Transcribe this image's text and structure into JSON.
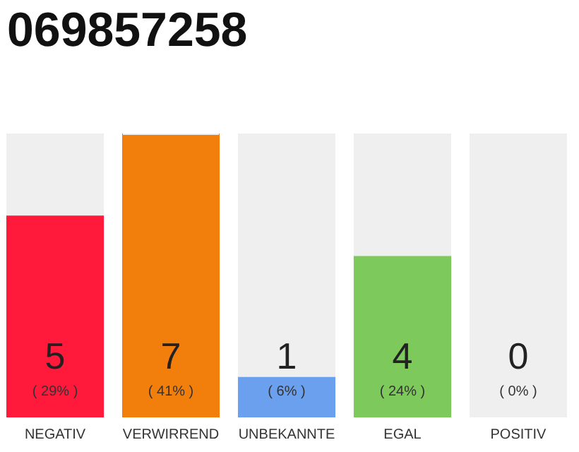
{
  "chart_data": {
    "type": "bar",
    "title": "069857258",
    "stacked": true,
    "tick_labels": "x",
    "ylim": [
      0,
      7
    ],
    "categories": [
      "NEGATIV",
      "VERWIRREND",
      "UNBEKANNTE",
      "EGAL",
      "POSITIV"
    ],
    "series": [
      {
        "colors": [
          "#ff1a3c",
          "#f27f0c",
          "#6aa0ee",
          "#7ec95c",
          "#22aa44"
        ],
        "values": [
          5,
          7,
          1,
          4,
          0
        ],
        "value_labels": [
          "5",
          "7",
          "1",
          "4",
          "0"
        ]
      },
      {
        "color": "#efefef",
        "values": [
          2,
          0,
          6,
          3,
          7
        ]
      }
    ],
    "annotations": [
      "( 29% )",
      "( 41% )",
      "( 6% )",
      "( 24% )",
      "( 0% )"
    ]
  }
}
